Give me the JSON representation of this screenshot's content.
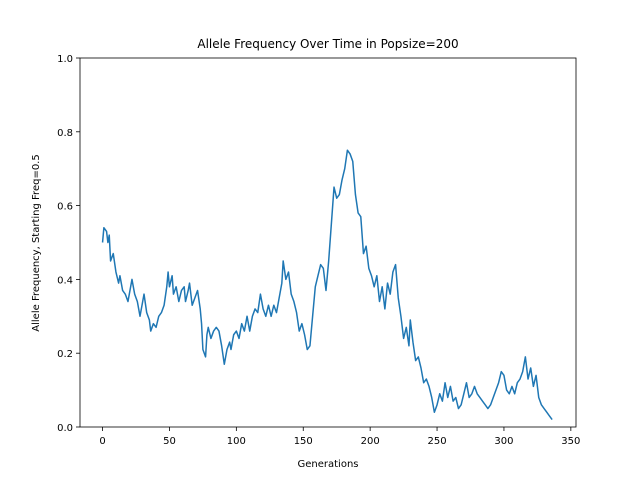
{
  "chart_data": {
    "type": "line",
    "title": "Allele Frequency Over Time in Popsize=200",
    "x_label": "Generations",
    "y_label": "Allele Frequency, Starting Freq=0.5",
    "color": "#1f77b4",
    "x": [
      0,
      1,
      3,
      4,
      5,
      6,
      8,
      10,
      12,
      13,
      15,
      17,
      19,
      21,
      22,
      24,
      26,
      28,
      30,
      31,
      33,
      35,
      36,
      38,
      40,
      42,
      44,
      46,
      48,
      49,
      50,
      52,
      53,
      55,
      57,
      59,
      61,
      62,
      64,
      65,
      67,
      69,
      71,
      73,
      74,
      75,
      77,
      78,
      79,
      81,
      83,
      85,
      87,
      89,
      91,
      93,
      95,
      96,
      98,
      100,
      102,
      104,
      106,
      108,
      110,
      112,
      114,
      116,
      118,
      120,
      122,
      124,
      126,
      128,
      130,
      132,
      134,
      135,
      137,
      139,
      141,
      143,
      145,
      147,
      149,
      151,
      153,
      155,
      157,
      159,
      161,
      163,
      165,
      167,
      169,
      171,
      173,
      175,
      177,
      179,
      181,
      183,
      185,
      187,
      189,
      191,
      193,
      195,
      197,
      199,
      201,
      203,
      205,
      207,
      209,
      211,
      213,
      215,
      217,
      219,
      221,
      223,
      225,
      227,
      229,
      230,
      232,
      234,
      236,
      238,
      240,
      242,
      244,
      246,
      248,
      250,
      252,
      254,
      256,
      258,
      260,
      262,
      264,
      266,
      268,
      270,
      272,
      274,
      276,
      278,
      280,
      282,
      284,
      286,
      288,
      290,
      292,
      294,
      296,
      298,
      300,
      302,
      304,
      306,
      308,
      310,
      312,
      314,
      316,
      318,
      320,
      322,
      324,
      326,
      328,
      330,
      332,
      334,
      336
    ],
    "values": [
      0.5,
      0.54,
      0.53,
      0.5,
      0.52,
      0.45,
      0.47,
      0.42,
      0.39,
      0.41,
      0.37,
      0.36,
      0.34,
      0.38,
      0.4,
      0.36,
      0.34,
      0.3,
      0.34,
      0.36,
      0.31,
      0.29,
      0.26,
      0.28,
      0.27,
      0.3,
      0.31,
      0.33,
      0.38,
      0.42,
      0.38,
      0.41,
      0.36,
      0.38,
      0.34,
      0.37,
      0.38,
      0.34,
      0.37,
      0.39,
      0.33,
      0.35,
      0.37,
      0.32,
      0.28,
      0.21,
      0.19,
      0.25,
      0.27,
      0.24,
      0.26,
      0.27,
      0.26,
      0.22,
      0.17,
      0.21,
      0.23,
      0.21,
      0.25,
      0.26,
      0.24,
      0.28,
      0.26,
      0.3,
      0.26,
      0.3,
      0.32,
      0.31,
      0.36,
      0.32,
      0.3,
      0.33,
      0.3,
      0.33,
      0.31,
      0.35,
      0.39,
      0.45,
      0.4,
      0.42,
      0.36,
      0.34,
      0.31,
      0.26,
      0.28,
      0.25,
      0.21,
      0.22,
      0.3,
      0.38,
      0.41,
      0.44,
      0.43,
      0.37,
      0.45,
      0.55,
      0.65,
      0.62,
      0.63,
      0.67,
      0.7,
      0.75,
      0.74,
      0.72,
      0.63,
      0.58,
      0.57,
      0.47,
      0.49,
      0.43,
      0.41,
      0.38,
      0.41,
      0.34,
      0.38,
      0.32,
      0.39,
      0.36,
      0.42,
      0.44,
      0.35,
      0.3,
      0.24,
      0.27,
      0.22,
      0.29,
      0.23,
      0.18,
      0.19,
      0.16,
      0.12,
      0.13,
      0.11,
      0.08,
      0.04,
      0.06,
      0.09,
      0.07,
      0.12,
      0.08,
      0.11,
      0.07,
      0.08,
      0.05,
      0.06,
      0.09,
      0.12,
      0.08,
      0.09,
      0.11,
      0.09,
      0.08,
      0.07,
      0.06,
      0.05,
      0.06,
      0.08,
      0.1,
      0.12,
      0.15,
      0.14,
      0.1,
      0.09,
      0.11,
      0.09,
      0.12,
      0.13,
      0.15,
      0.19,
      0.13,
      0.16,
      0.11,
      0.14,
      0.08,
      0.06,
      0.05,
      0.04,
      0.03,
      0.02
    ],
    "xlim": [
      -16.85,
      353.85
    ],
    "xticks": [
      0,
      50,
      100,
      150,
      200,
      250,
      300,
      350
    ],
    "ylim": [
      0,
      1
    ],
    "yticks": [
      {
        "value": 0,
        "label": "0.0"
      },
      0.2,
      0.4,
      0.6,
      0.8,
      {
        "value": 1,
        "label": "1.0"
      }
    ]
  }
}
